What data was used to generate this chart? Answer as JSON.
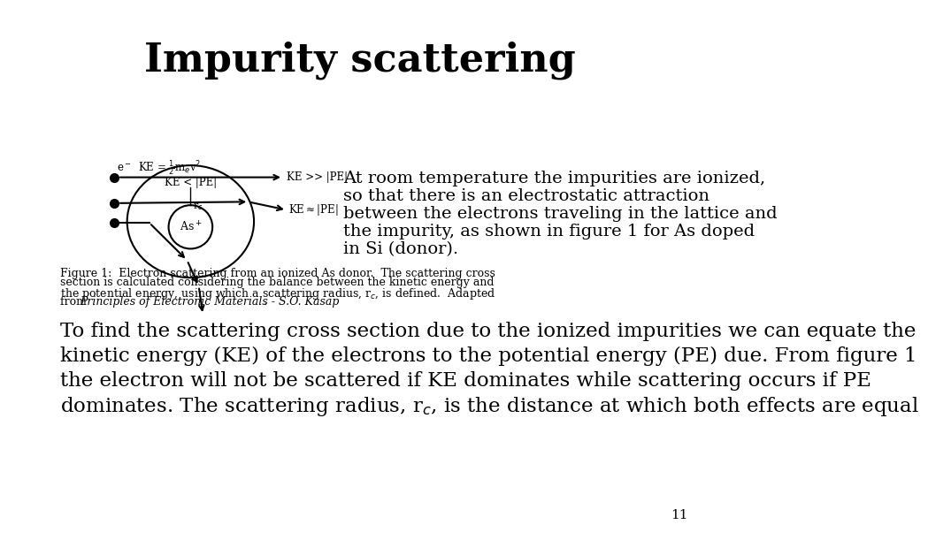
{
  "title": "Impurity scattering",
  "title_fontsize": 32,
  "title_fontweight": "bold",
  "background_color": "#ffffff",
  "page_number": "11",
  "right_text_lines": [
    "At room temperature the impurities are ionized,",
    "so that there is an electrostatic attraction",
    "between the electrons traveling in the lattice and",
    "the impurity, as shown in figure 1 for As doped",
    "in Si (donor)."
  ],
  "caption_lines": [
    "Figure 1:  Electron scattering from an ionized As donor.  The scattering cross",
    "section is calculated considering the balance between the kinetic energy and",
    "the potential energy, using which a scattering radius, r_c, is defined.  Adapted"
  ],
  "caption_italic": "Principles of Electronic Materials - S.O. Kasap",
  "body_lines": [
    "To find the scattering cross section due to the ionized impurities we can equate the",
    "kinetic energy (KE) of the electrons to the potential energy (PE) due. From figure 1",
    "the electron will not be scattered if KE dominates while scattering occurs if PE",
    "dominates. The scattering radius, r_c, is the distance at which both effects are equal"
  ]
}
